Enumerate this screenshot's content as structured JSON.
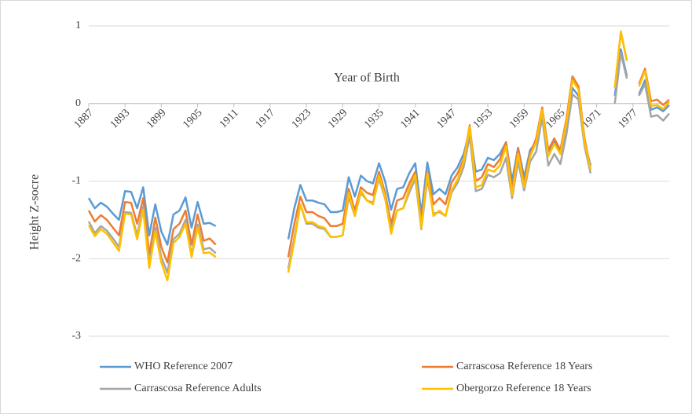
{
  "chart_data": {
    "type": "line",
    "x_title": "Year of Birth",
    "y_title": "Height Z-socre",
    "x": [
      1887,
      1888,
      1889,
      1890,
      1891,
      1892,
      1893,
      1894,
      1895,
      1896,
      1897,
      1898,
      1899,
      1900,
      1901,
      1902,
      1903,
      1904,
      1905,
      1906,
      1907,
      1908,
      1909,
      1910,
      1911,
      1912,
      1913,
      1914,
      1915,
      1916,
      1917,
      1918,
      1919,
      1920,
      1921,
      1922,
      1923,
      1924,
      1925,
      1926,
      1927,
      1928,
      1929,
      1930,
      1931,
      1932,
      1933,
      1934,
      1935,
      1936,
      1937,
      1938,
      1939,
      1940,
      1941,
      1942,
      1943,
      1944,
      1945,
      1946,
      1947,
      1948,
      1949,
      1950,
      1951,
      1952,
      1953,
      1954,
      1955,
      1956,
      1957,
      1958,
      1959,
      1960,
      1961,
      1962,
      1963,
      1964,
      1965,
      1966,
      1967,
      1968,
      1969,
      1970,
      1971,
      1972,
      1973,
      1974,
      1975,
      1976,
      1977,
      1978,
      1979,
      1980,
      1981,
      1982,
      1983
    ],
    "xlim": [
      1887,
      1983
    ],
    "xticks": [
      1887,
      1893,
      1899,
      1905,
      1911,
      1917,
      1923,
      1929,
      1935,
      1941,
      1947,
      1953,
      1959,
      1965,
      1971,
      1977
    ],
    "ylim": [
      -3,
      1
    ],
    "yticks": [
      -3,
      -2,
      -1,
      0,
      1
    ],
    "grid": true,
    "series": [
      {
        "name": "WHO Reference 2007",
        "color": "#5b9bd5",
        "values": [
          -1.22,
          -1.35,
          -1.28,
          -1.33,
          -1.42,
          -1.5,
          -1.13,
          -1.14,
          -1.35,
          -1.08,
          -1.7,
          -1.3,
          -1.65,
          -1.82,
          -1.43,
          -1.38,
          -1.21,
          -1.6,
          -1.27,
          -1.55,
          -1.54,
          -1.58,
          null,
          null,
          null,
          null,
          null,
          null,
          null,
          null,
          null,
          null,
          null,
          -1.75,
          -1.35,
          -1.05,
          -1.25,
          -1.25,
          -1.28,
          -1.3,
          -1.4,
          -1.4,
          -1.38,
          -0.95,
          -1.2,
          -0.93,
          -1.0,
          -1.03,
          -0.77,
          -1.0,
          -1.37,
          -1.1,
          -1.08,
          -0.9,
          -0.77,
          -1.42,
          -0.76,
          -1.17,
          -1.1,
          -1.17,
          -0.93,
          -0.82,
          -0.65,
          -0.35,
          -0.88,
          -0.85,
          -0.7,
          -0.73,
          -0.65,
          -0.5,
          -1.0,
          -0.57,
          -0.95,
          -0.6,
          -0.5,
          -0.1,
          -0.62,
          -0.5,
          -0.65,
          -0.3,
          0.2,
          0.1,
          -0.5,
          -0.8,
          null,
          null,
          null,
          0.1,
          0.7,
          0.35,
          null,
          0.12,
          0.3,
          -0.08,
          -0.05,
          -0.1,
          -0.02
        ]
      },
      {
        "name": "Carrascosa Reference 18 Years",
        "color": "#ed7d31",
        "values": [
          -1.38,
          -1.52,
          -1.44,
          -1.5,
          -1.6,
          -1.7,
          -1.27,
          -1.28,
          -1.55,
          -1.22,
          -1.95,
          -1.47,
          -1.85,
          -2.05,
          -1.62,
          -1.55,
          -1.38,
          -1.82,
          -1.43,
          -1.77,
          -1.74,
          -1.82,
          null,
          null,
          null,
          null,
          null,
          null,
          null,
          null,
          null,
          null,
          null,
          -1.98,
          -1.55,
          -1.2,
          -1.4,
          -1.4,
          -1.45,
          -1.48,
          -1.58,
          -1.58,
          -1.55,
          -1.1,
          -1.38,
          -1.08,
          -1.15,
          -1.18,
          -0.88,
          -1.15,
          -1.55,
          -1.25,
          -1.22,
          -1.03,
          -0.88,
          -1.55,
          -0.88,
          -1.3,
          -1.22,
          -1.3,
          -1.02,
          -0.9,
          -0.72,
          -0.28,
          -1.0,
          -0.95,
          -0.78,
          -0.82,
          -0.72,
          -0.5,
          -1.1,
          -0.58,
          -1.02,
          -0.65,
          -0.45,
          -0.05,
          -0.6,
          -0.45,
          -0.6,
          -0.2,
          0.35,
          0.22,
          -0.45,
          -0.85,
          null,
          null,
          null,
          0.2,
          0.92,
          0.55,
          null,
          0.25,
          0.45,
          0.03,
          0.05,
          -0.02,
          0.05
        ]
      },
      {
        "name": "Carrascosa Reference Adults",
        "color": "#a5a5a5",
        "values": [
          -1.52,
          -1.67,
          -1.58,
          -1.64,
          -1.74,
          -1.85,
          -1.4,
          -1.41,
          -1.7,
          -1.33,
          -2.08,
          -1.6,
          -1.98,
          -2.18,
          -1.75,
          -1.68,
          -1.5,
          -1.95,
          -1.56,
          -1.88,
          -1.86,
          -1.93,
          null,
          null,
          null,
          null,
          null,
          null,
          null,
          null,
          null,
          null,
          null,
          -2.13,
          -1.73,
          -1.3,
          -1.55,
          -1.55,
          -1.6,
          -1.62,
          -1.72,
          -1.72,
          -1.7,
          -1.2,
          -1.45,
          -1.15,
          -1.25,
          -1.28,
          -0.97,
          -1.22,
          -1.62,
          -1.38,
          -1.35,
          -1.15,
          -0.97,
          -1.62,
          -0.97,
          -1.42,
          -1.4,
          -1.45,
          -1.15,
          -1.02,
          -0.82,
          -0.42,
          -1.13,
          -1.1,
          -0.92,
          -0.95,
          -0.9,
          -0.7,
          -1.22,
          -0.75,
          -1.12,
          -0.75,
          -0.62,
          -0.18,
          -0.8,
          -0.65,
          -0.78,
          -0.4,
          0.12,
          0.05,
          -0.55,
          -0.9,
          null,
          null,
          null,
          0.0,
          0.65,
          0.32,
          null,
          0.1,
          0.25,
          -0.17,
          -0.15,
          -0.22,
          -0.13
        ]
      },
      {
        "name": "Obergorzo Reference 18 Years",
        "color": "#ffc000",
        "values": [
          -1.57,
          -1.71,
          -1.62,
          -1.68,
          -1.79,
          -1.9,
          -1.42,
          -1.43,
          -1.75,
          -1.37,
          -2.12,
          -1.65,
          -2.05,
          -2.28,
          -1.8,
          -1.72,
          -1.55,
          -1.98,
          -1.6,
          -1.93,
          -1.92,
          -1.98,
          null,
          null,
          null,
          null,
          null,
          null,
          null,
          null,
          null,
          null,
          null,
          -2.18,
          -1.78,
          -1.3,
          -1.53,
          -1.53,
          -1.58,
          -1.6,
          -1.72,
          -1.72,
          -1.7,
          -1.15,
          -1.45,
          -1.12,
          -1.25,
          -1.3,
          -0.93,
          -1.2,
          -1.68,
          -1.38,
          -1.35,
          -1.1,
          -0.92,
          -1.6,
          -0.9,
          -1.45,
          -1.38,
          -1.45,
          -1.12,
          -0.98,
          -0.75,
          -0.3,
          -1.08,
          -1.05,
          -0.85,
          -0.88,
          -0.8,
          -0.55,
          -1.18,
          -0.65,
          -1.08,
          -0.68,
          -0.5,
          -0.08,
          -0.68,
          -0.52,
          -0.65,
          -0.25,
          0.3,
          0.18,
          -0.5,
          -0.85,
          null,
          null,
          null,
          0.2,
          0.93,
          0.55,
          null,
          0.22,
          0.42,
          -0.03,
          -0.02,
          -0.07,
          0.02
        ]
      }
    ]
  }
}
